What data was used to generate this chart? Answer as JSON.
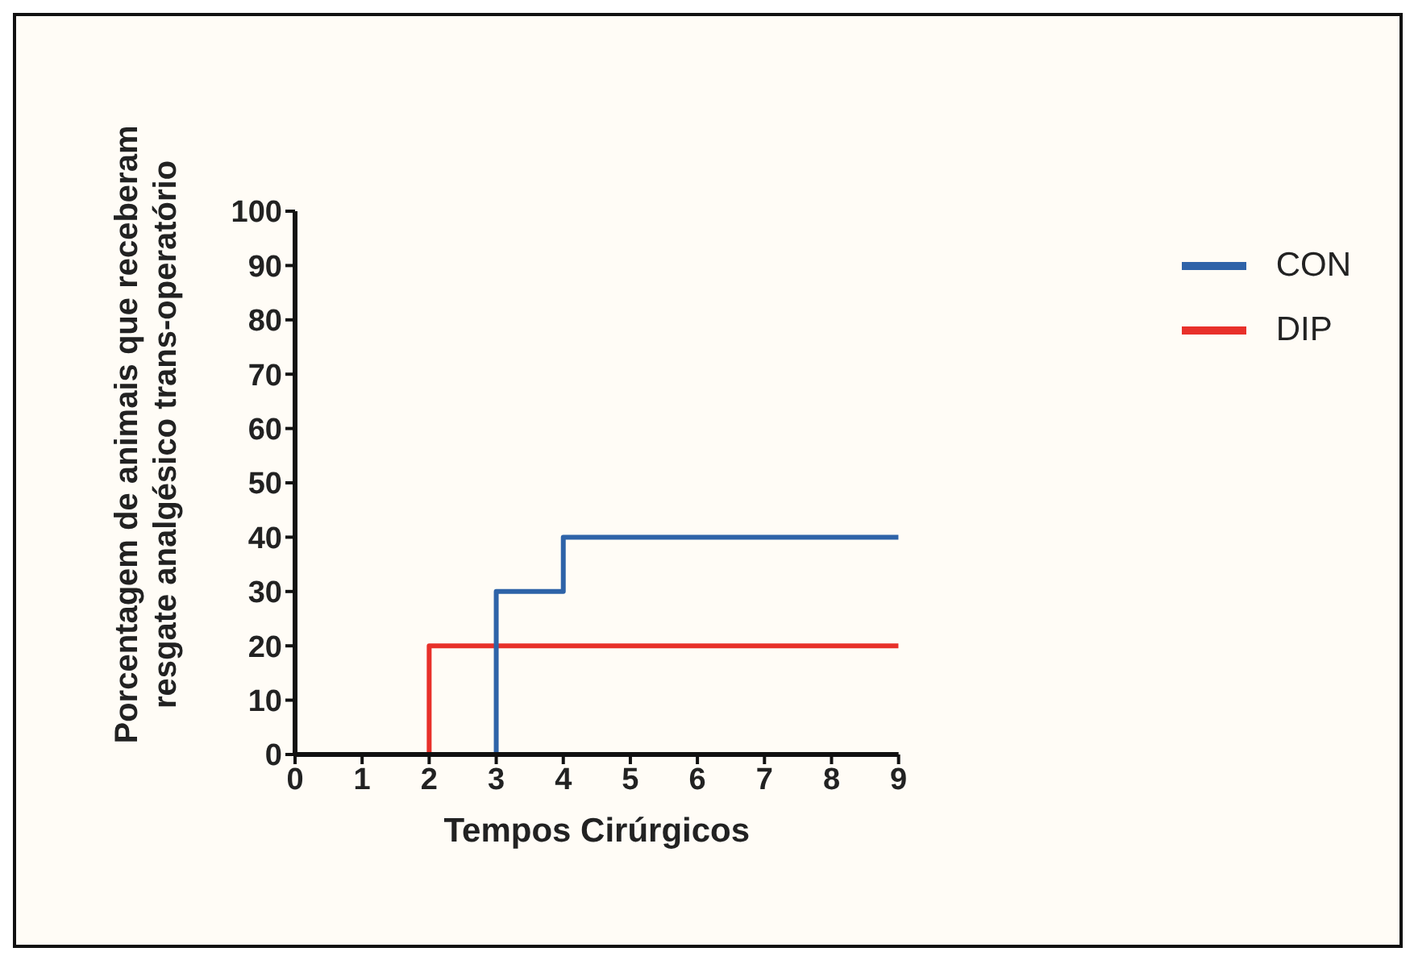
{
  "chart_data": {
    "type": "step",
    "xlabel": "Tempos Cirúrgicos",
    "ylabel": "Porcentagem de animais que receberam\nresgate analgésico trans-operatório",
    "xlim": [
      0,
      9
    ],
    "xticks": [
      0,
      1,
      2,
      3,
      4,
      5,
      6,
      7,
      8,
      9
    ],
    "ylim": [
      0,
      100
    ],
    "yticks": [
      0,
      10,
      20,
      30,
      40,
      50,
      60,
      70,
      80,
      90,
      100
    ],
    "grid": false,
    "legend": "top right",
    "marker": "none",
    "line_style": "solid",
    "series": [
      {
        "name": "DIP",
        "color": "#e8302a",
        "x": [
          0,
          2,
          9
        ],
        "values": [
          0,
          20,
          20
        ]
      },
      {
        "name": "CON",
        "color": "#2e63a8",
        "x": [
          0,
          3,
          4,
          9
        ],
        "values": [
          0,
          30,
          40,
          40
        ]
      }
    ]
  }
}
